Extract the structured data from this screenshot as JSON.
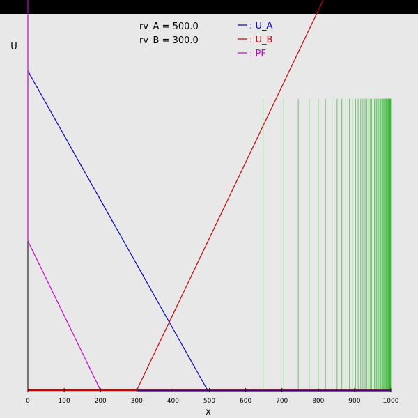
{
  "chart_data": {
    "type": "line",
    "title": "",
    "xlabel": "x",
    "ylabel": "U",
    "xlim": [
      0,
      1000
    ],
    "ylim": [
      0,
      1
    ],
    "x_ticks": [
      0,
      100,
      200,
      300,
      400,
      500,
      600,
      700,
      800,
      900,
      1000
    ],
    "params": [
      {
        "label": "rv_A = 500.0"
      },
      {
        "label": "rv_B = 300.0"
      }
    ],
    "series": [
      {
        "name": ": U_A",
        "color": "#0000cc",
        "points": [
          [
            0,
            0.92
          ],
          [
            495,
            0
          ]
        ]
      },
      {
        "name": ": U_B",
        "color": "#cc0000",
        "points": [
          [
            300,
            0
          ],
          [
            830,
            1.16
          ]
        ]
      },
      {
        "name": ": PF",
        "color": "#cc00cc",
        "points": [
          [
            0,
            1.15
          ],
          [
            0,
            0.43
          ],
          [
            200,
            0
          ]
        ]
      }
    ],
    "baseline": {
      "color": "#cc0000",
      "overlay_color": "#0000cc",
      "overlay_from": 300
    },
    "green_lines": {
      "color": "#00aa00",
      "top": 0.84,
      "x": [
        648,
        705,
        745,
        775,
        800,
        820,
        838,
        852,
        865,
        876,
        886,
        895,
        903,
        910,
        917,
        923,
        929,
        934,
        939,
        943,
        947,
        951,
        955,
        958,
        961,
        964,
        967,
        970,
        972,
        975,
        977,
        979,
        981,
        983,
        985,
        987,
        988,
        990,
        991,
        993,
        994,
        995,
        996,
        997,
        998,
        999,
        1000
      ]
    },
    "legend_position": "top-center"
  }
}
